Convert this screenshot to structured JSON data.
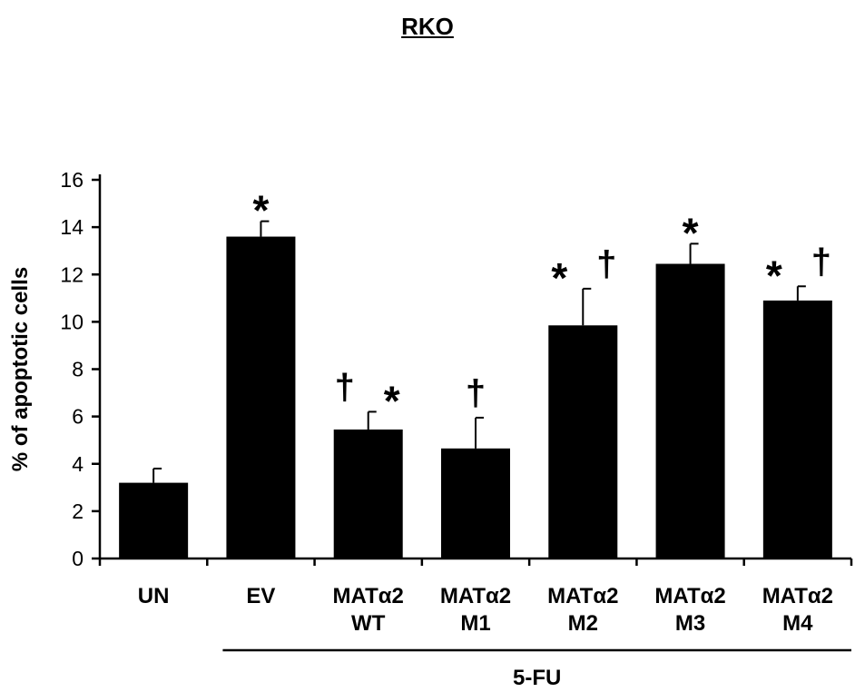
{
  "chart_data": {
    "type": "bar",
    "title": "RKO",
    "ylabel": "% of apoptotic cells",
    "xlabel": "",
    "ylim": [
      0,
      16
    ],
    "yticks": [
      "0",
      "2",
      "4",
      "6",
      "8",
      "10",
      "12",
      "14",
      "16"
    ],
    "categories": [
      [
        "UN"
      ],
      [
        "EV"
      ],
      [
        "MATα2",
        "WT"
      ],
      [
        "MATα2",
        "M1"
      ],
      [
        "MATα2",
        "M2"
      ],
      [
        "MATα2",
        "M3"
      ],
      [
        "MATα2",
        "M4"
      ]
    ],
    "values": [
      3.2,
      13.6,
      5.45,
      4.65,
      9.85,
      12.45,
      10.9
    ],
    "errors": [
      0.6,
      0.65,
      0.75,
      1.3,
      1.55,
      0.85,
      0.6
    ],
    "annotations": [
      [],
      [
        "*"
      ],
      [
        "†",
        "*"
      ],
      [
        "†"
      ],
      [
        "*",
        "†"
      ],
      [
        "*"
      ],
      [
        "*",
        "†"
      ]
    ],
    "bar_color": "#000000",
    "group_label": "5-FU",
    "group_range": [
      1,
      6
    ],
    "grid": false,
    "legend": "none"
  }
}
